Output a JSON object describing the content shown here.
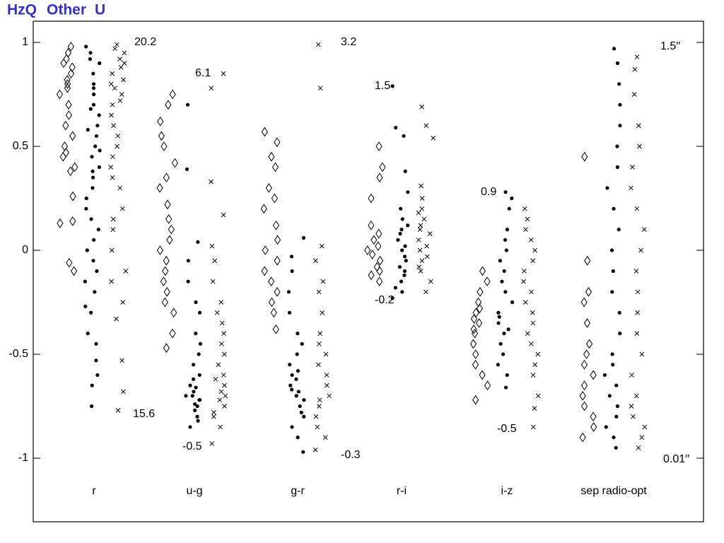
{
  "chart_data": {
    "type": "scatter",
    "categories": [
      "r",
      "u-g",
      "g-r",
      "r-i",
      "i-z",
      "sep radio-opt"
    ],
    "ylim": [
      -1.306,
      1.102
    ],
    "yticks": [
      1,
      0.5,
      0,
      -0.5,
      -1
    ],
    "series": [
      {
        "name": "HzQ",
        "marker": "diamond",
        "color": "#000000",
        "values": [
          [
            0.98,
            0.95,
            0.92,
            0.9,
            0.88,
            0.85,
            0.82,
            0.8,
            0.78,
            0.75,
            0.7,
            0.65,
            0.6,
            0.55,
            0.5,
            0.47,
            0.45,
            0.4,
            0.38,
            0.26,
            0.14,
            0.13,
            -0.06,
            -0.1
          ],
          [
            0.75,
            0.7,
            0.62,
            0.55,
            0.5,
            0.42,
            0.35,
            0.3,
            0.22,
            0.15,
            0.1,
            0.05,
            0,
            -0.05,
            -0.1,
            -0.15,
            -0.2,
            -0.25,
            -0.3,
            -0.4,
            -0.47
          ],
          [
            0.57,
            0.52,
            0.45,
            0.4,
            0.3,
            0.25,
            0.2,
            0.12,
            0.05,
            0,
            -0.05,
            -0.1,
            -0.15,
            -0.2,
            -0.25,
            -0.3,
            -0.38
          ],
          [
            0.5,
            0.4,
            0.35,
            0.25,
            0.12,
            0.08,
            0.05,
            0.02,
            0,
            -0.02,
            -0.05,
            -0.08,
            -0.1,
            -0.12,
            -0.15
          ],
          [
            -0.1,
            -0.15,
            -0.2,
            -0.25,
            -0.28,
            -0.3,
            -0.33,
            -0.35,
            -0.38,
            -0.4,
            -0.45,
            -0.5,
            -0.55,
            -0.6,
            -0.65,
            -0.72
          ],
          [
            0.45,
            -0.05,
            -0.2,
            -0.25,
            -0.35,
            -0.45,
            -0.5,
            -0.55,
            -0.6,
            -0.65,
            -0.7,
            -0.75,
            -0.8,
            -0.85,
            -0.9
          ]
        ]
      },
      {
        "name": "Other",
        "marker": "dot",
        "color": "#000000",
        "values": [
          [
            0.98,
            0.95,
            0.92,
            0.9,
            0.85,
            0.8,
            0.78,
            0.75,
            0.7,
            0.68,
            0.65,
            0.6,
            0.58,
            0.55,
            0.5,
            0.48,
            0.45,
            0.4,
            0.38,
            0.35,
            0.3,
            0.25,
            0.2,
            0.15,
            0.1,
            0.05,
            0,
            -0.05,
            -0.1,
            -0.15,
            -0.2,
            -0.27,
            -0.3,
            -0.4,
            -0.45,
            -0.53,
            -0.6,
            -0.65,
            -0.75
          ],
          [
            0.7,
            0.39,
            0.04,
            -0.05,
            -0.15,
            -0.25,
            -0.3,
            -0.4,
            -0.45,
            -0.5,
            -0.55,
            -0.6,
            -0.62,
            -0.65,
            -0.66,
            -0.68,
            -0.7,
            -0.7,
            -0.72,
            -0.72,
            -0.74,
            -0.75,
            -0.77,
            -0.8,
            -0.82,
            -0.85
          ],
          [
            0.06,
            -0.03,
            -0.1,
            -0.2,
            -0.3,
            -0.4,
            -0.45,
            -0.5,
            -0.55,
            -0.58,
            -0.6,
            -0.62,
            -0.65,
            -0.67,
            -0.68,
            -0.7,
            -0.72,
            -0.75,
            -0.78,
            -0.8,
            -0.85,
            -0.9,
            -0.97
          ],
          [
            0.79,
            0.59,
            0.55,
            0.38,
            0.28,
            0.2,
            0.15,
            0.12,
            0.1,
            0.08,
            0.05,
            0.02,
            0,
            -0.03,
            -0.05,
            -0.08,
            -0.1,
            -0.12,
            -0.15,
            -0.18,
            -0.2,
            -0.23
          ],
          [
            0.28,
            0.25,
            0.2,
            0.1,
            0.05,
            0,
            -0.05,
            -0.1,
            -0.15,
            -0.2,
            -0.25,
            -0.3,
            -0.32,
            -0.35,
            -0.38,
            -0.4,
            -0.45,
            -0.5,
            -0.55,
            -0.6,
            -0.66
          ],
          [
            0.97,
            0.9,
            0.8,
            0.7,
            0.6,
            0.5,
            0.4,
            0.3,
            0.2,
            0.1,
            0,
            -0.1,
            -0.2,
            -0.3,
            -0.4,
            -0.5,
            -0.55,
            -0.6,
            -0.65,
            -0.7,
            -0.75,
            -0.8,
            -0.85,
            -0.9,
            -0.95
          ]
        ]
      },
      {
        "name": "U",
        "marker": "cross",
        "color": "#000000",
        "values": [
          [
            0.99,
            0.97,
            0.95,
            0.92,
            0.9,
            0.88,
            0.85,
            0.82,
            0.8,
            0.78,
            0.75,
            0.72,
            0.7,
            0.65,
            0.6,
            0.55,
            0.5,
            0.45,
            0.4,
            0.35,
            0.3,
            0.2,
            0.15,
            0.1,
            0,
            -0.1,
            -0.15,
            -0.25,
            -0.33,
            -0.53,
            -0.68,
            -0.77
          ],
          [
            0.85,
            0.78,
            0.33,
            0.17,
            0.02,
            -0.05,
            -0.15,
            -0.25,
            -0.3,
            -0.35,
            -0.4,
            -0.45,
            -0.5,
            -0.55,
            -0.6,
            -0.62,
            -0.65,
            -0.68,
            -0.7,
            -0.72,
            -0.75,
            -0.78,
            -0.8,
            -0.85,
            -0.93
          ],
          [
            0.99,
            0.78,
            0.02,
            -0.05,
            -0.15,
            -0.2,
            -0.3,
            -0.4,
            -0.45,
            -0.5,
            -0.55,
            -0.6,
            -0.65,
            -0.7,
            -0.72,
            -0.75,
            -0.8,
            -0.85,
            -0.9,
            -0.96
          ],
          [
            0.69,
            0.6,
            0.54,
            0.31,
            0.25,
            0.2,
            0.18,
            0.15,
            0.12,
            0.1,
            0.08,
            0.05,
            0.02,
            0,
            -0.03,
            -0.05,
            -0.08,
            -0.1,
            -0.15,
            -0.2
          ],
          [
            0.2,
            0.15,
            0.1,
            0.05,
            0,
            -0.05,
            -0.1,
            -0.15,
            -0.2,
            -0.25,
            -0.3,
            -0.35,
            -0.4,
            -0.45,
            -0.5,
            -0.55,
            -0.6,
            -0.7,
            -0.76,
            -0.85
          ],
          [
            0.93,
            0.87,
            0.75,
            0.6,
            0.5,
            0.4,
            0.3,
            0.2,
            0.1,
            0,
            -0.1,
            -0.2,
            -0.3,
            -0.4,
            -0.5,
            -0.6,
            -0.7,
            -0.75,
            -0.8,
            -0.85,
            -0.9,
            -0.95
          ]
        ]
      }
    ],
    "annotations": [
      "20.2",
      "15.6",
      "6.1",
      "-0.5",
      "3.2",
      "-0.3",
      "1.5",
      "-0.2",
      "0.9",
      "-0.5",
      "1.5′′",
      "0.01′′"
    ],
    "legend_color": "#3333cc"
  }
}
